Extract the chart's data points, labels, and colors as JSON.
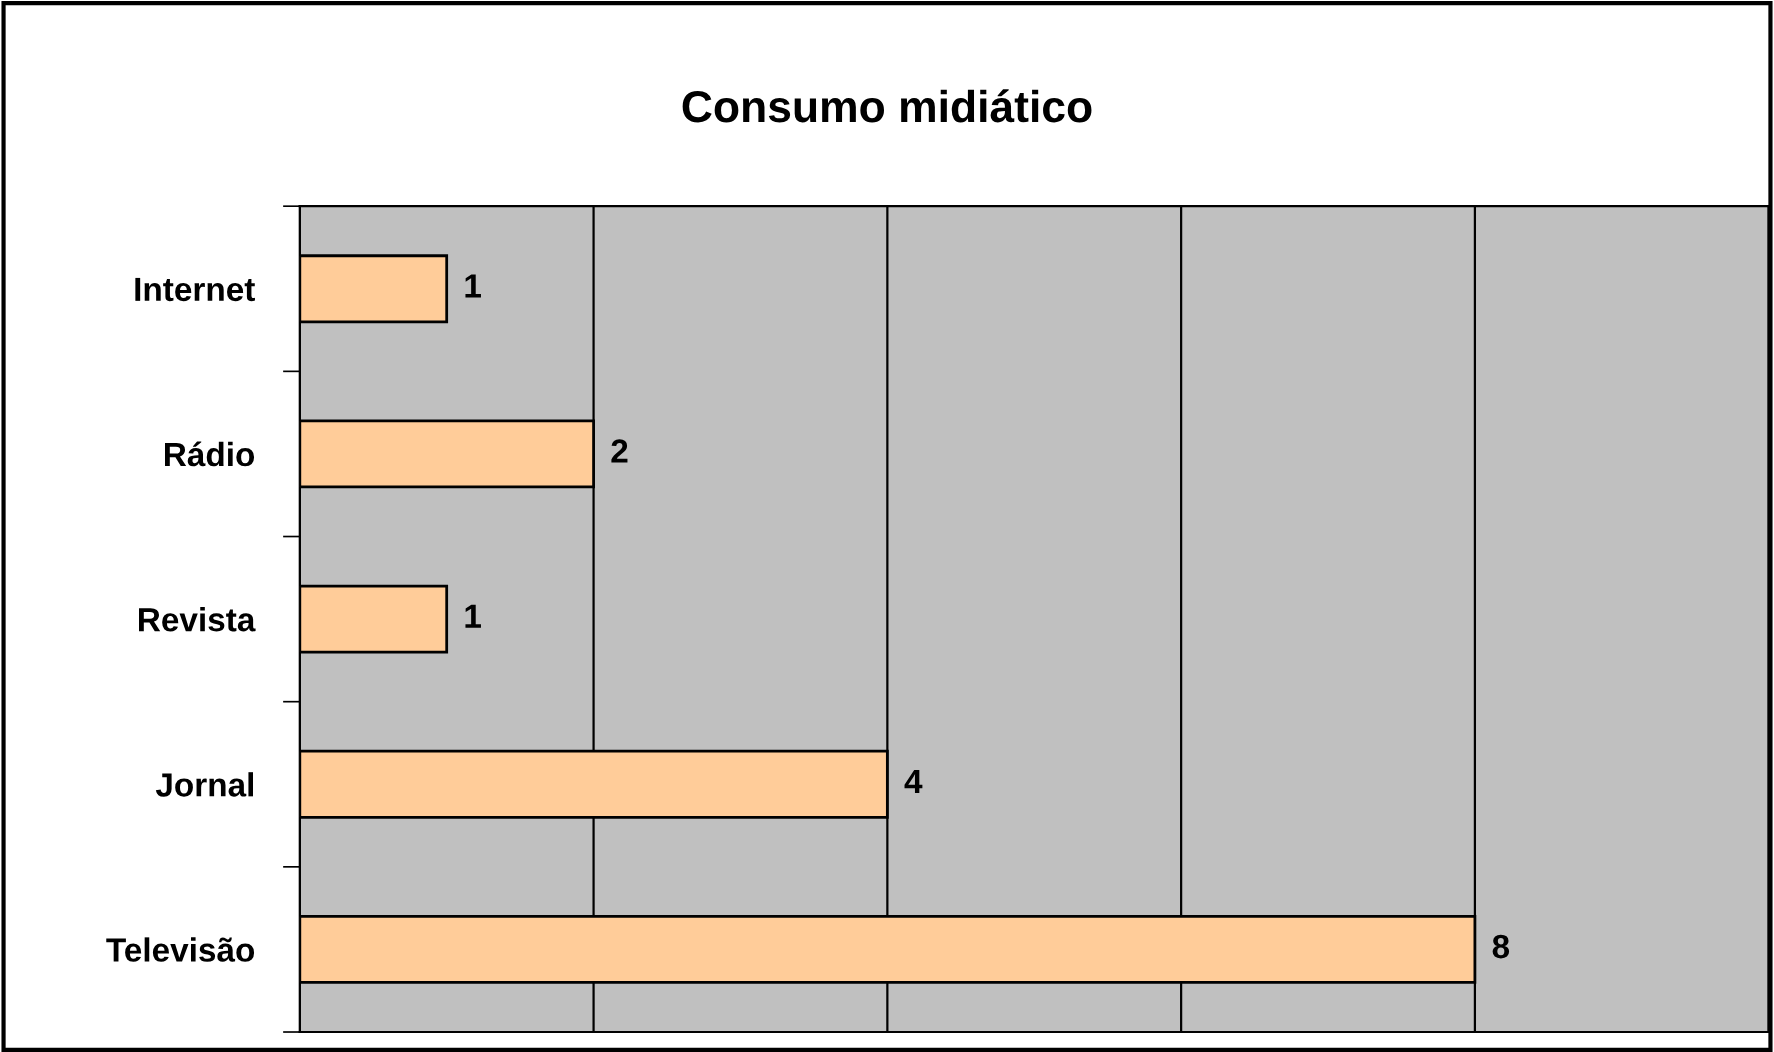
{
  "chart_data": {
    "type": "bar",
    "orientation": "horizontal",
    "title": "Consumo midiático",
    "categories": [
      "Internet",
      "Rádio",
      "Revista",
      "Jornal",
      "Televisão"
    ],
    "values": [
      1,
      2,
      1,
      4,
      8
    ],
    "color": "#ffcc99",
    "xlim": [
      0,
      10
    ],
    "xticks": [
      {
        "value": 0,
        "label": null
      },
      {
        "value": 2,
        "label": null
      },
      {
        "value": 4,
        "label": null
      },
      {
        "value": 6,
        "label": null
      },
      {
        "value": 8,
        "label": null
      },
      {
        "value": 10,
        "label": null
      }
    ],
    "grid": "x",
    "data_labels": true,
    "tick_labels": "y"
  }
}
